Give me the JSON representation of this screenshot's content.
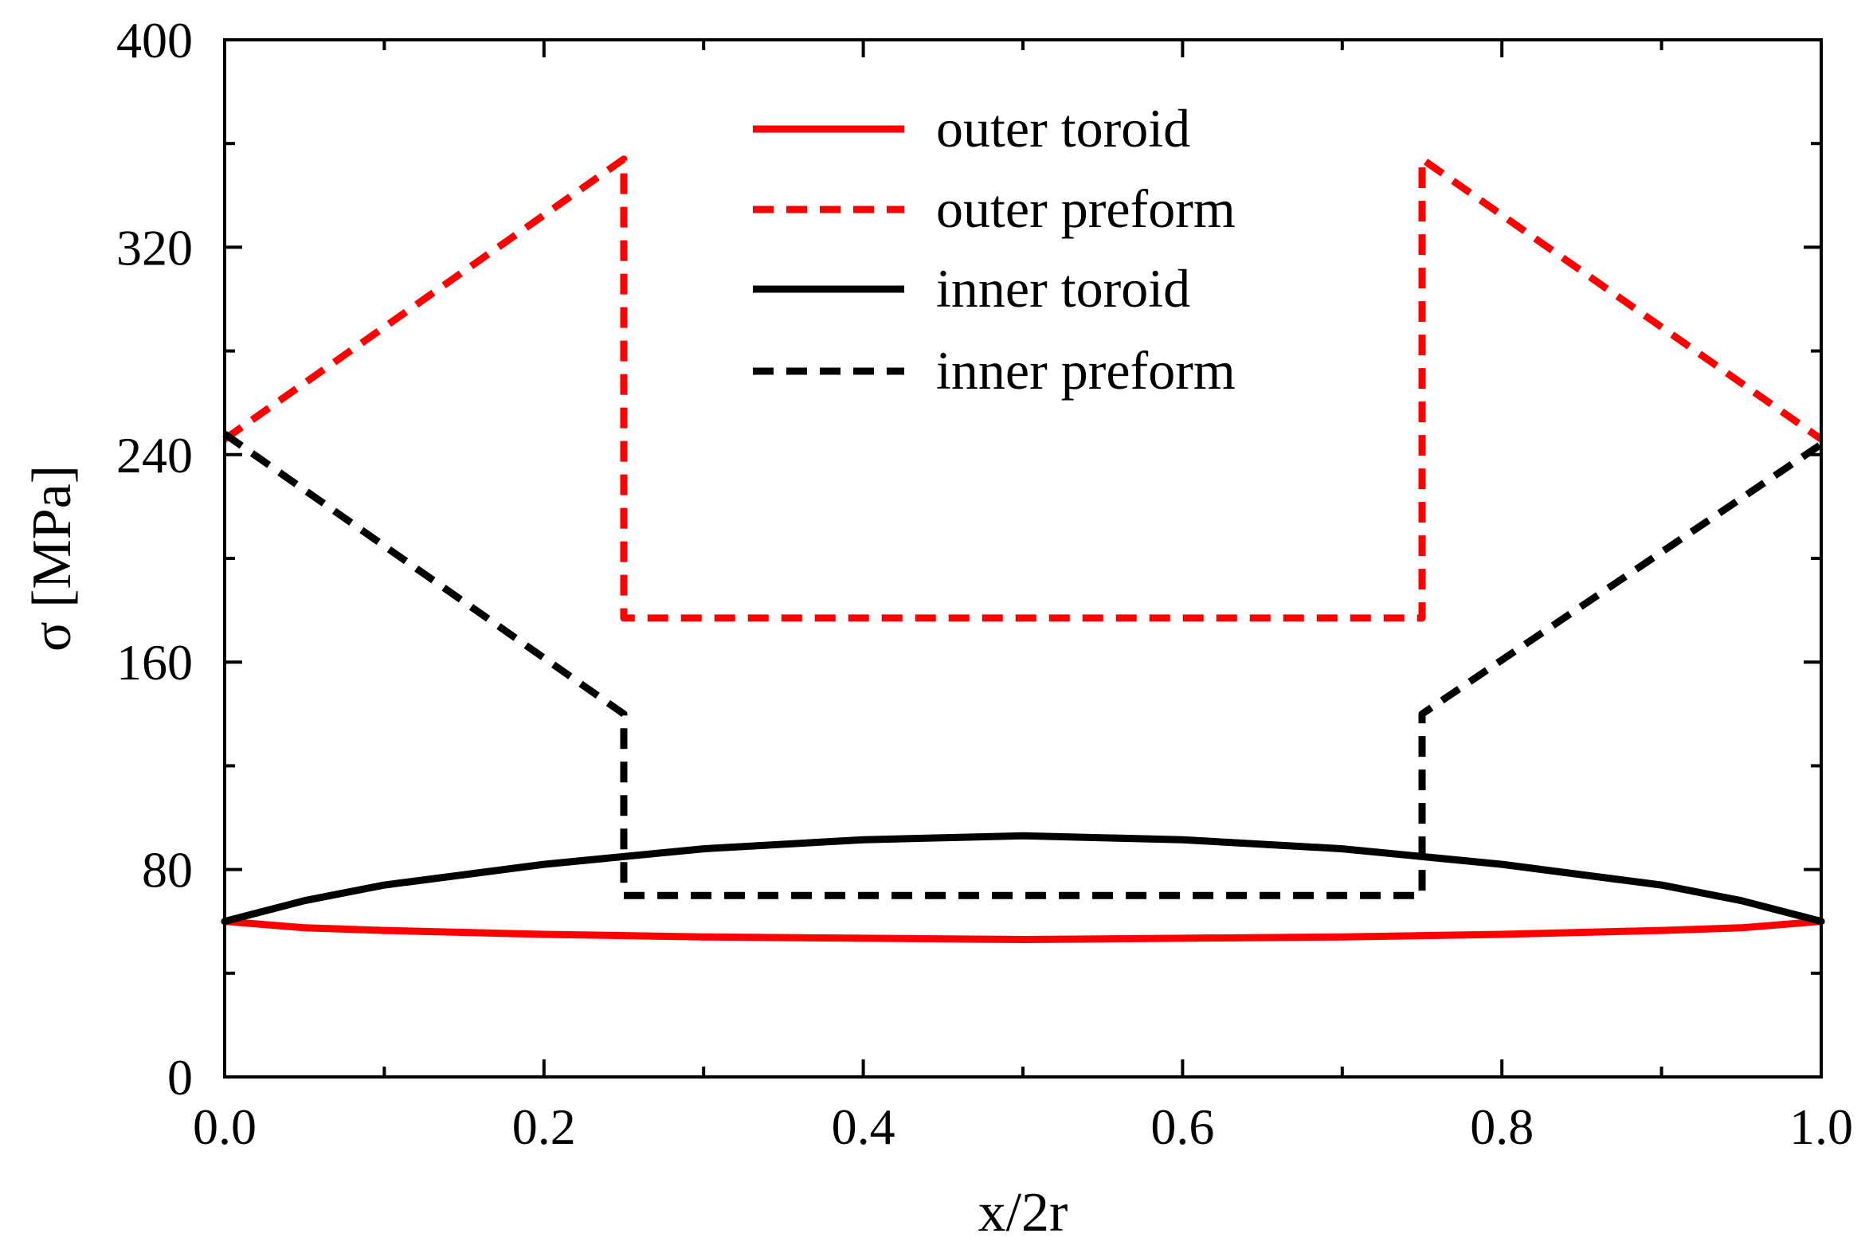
{
  "chart_data": {
    "type": "line",
    "xlabel": "x/2r",
    "ylabel": "σ [MPa]",
    "xlim": [
      0.0,
      1.0
    ],
    "ylim": [
      0,
      400
    ],
    "x_ticks": [
      "0.0",
      "0.2",
      "0.4",
      "0.6",
      "0.8",
      "1.0"
    ],
    "y_ticks": [
      "0",
      "80",
      "160",
      "240",
      "320",
      "400"
    ],
    "grid": false,
    "legend_position": "top-center",
    "series": [
      {
        "name": "outer toroid",
        "color": "#ff0000",
        "style": "solid",
        "x": [
          0.0,
          0.05,
          0.1,
          0.2,
          0.3,
          0.4,
          0.5,
          0.6,
          0.7,
          0.8,
          0.9,
          0.95,
          1.0
        ],
        "y": [
          60,
          57.5,
          56.5,
          55,
          54,
          53.5,
          53,
          53.5,
          54,
          55,
          56.5,
          57.5,
          60
        ]
      },
      {
        "name": "outer preform",
        "color": "#ff0000",
        "style": "dashed",
        "x": [
          0.0,
          0.25,
          0.25,
          0.75,
          0.75,
          1.0
        ],
        "y": [
          246,
          354,
          177,
          177,
          354,
          246
        ]
      },
      {
        "name": "inner toroid",
        "color": "#000000",
        "style": "solid",
        "x": [
          0.0,
          0.05,
          0.1,
          0.2,
          0.3,
          0.4,
          0.5,
          0.6,
          0.7,
          0.8,
          0.9,
          0.95,
          1.0
        ],
        "y": [
          60,
          68,
          74,
          82,
          88,
          91.5,
          93,
          91.5,
          88,
          82,
          74,
          68,
          60
        ]
      },
      {
        "name": "inner preform",
        "color": "#000000",
        "style": "dashed",
        "x": [
          0.0,
          0.25,
          0.25,
          0.75,
          0.75,
          1.0
        ],
        "y": [
          248,
          140,
          70,
          70,
          140,
          244
        ]
      }
    ]
  }
}
